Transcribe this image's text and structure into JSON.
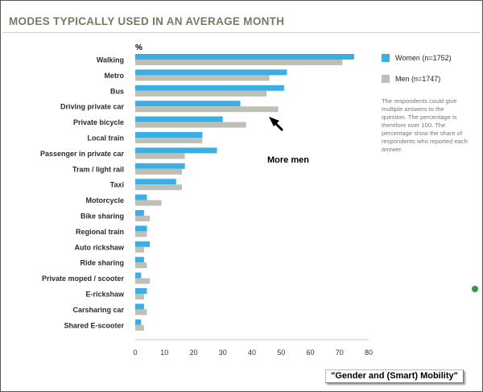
{
  "chart_data": {
    "type": "bar",
    "orientation": "horizontal",
    "title": "MODES TYPICALLY USED IN AN AVERAGE MONTH",
    "unit_label": "%",
    "categories": [
      "Walking",
      "Metro",
      "Bus",
      "Driving private car",
      "Private bicycle",
      "Local train",
      "Passenger in private car",
      "Tram / light rail",
      "Taxi",
      "Motorcycle",
      "Bike sharing",
      "Regional train",
      "Auto rickshaw",
      "Ride sharing",
      "Private moped / scooter",
      "E-rickshaw",
      "Carsharing car",
      "Shared E-scooter"
    ],
    "series": [
      {
        "name": "Women (n=1752)",
        "color": "#3baee4",
        "values": [
          75,
          52,
          51,
          36,
          30,
          23,
          28,
          17,
          14,
          4,
          3,
          4,
          5,
          3,
          2,
          4,
          3,
          2
        ]
      },
      {
        "name": "Men (n=1747)",
        "color": "#c0bfb5",
        "values": [
          71,
          46,
          45,
          49,
          38,
          23,
          17,
          16,
          16,
          9,
          5,
          4,
          3,
          4,
          5,
          3,
          4,
          3
        ]
      }
    ],
    "xlim": [
      0,
      80
    ],
    "xticks": [
      0,
      10,
      20,
      30,
      40,
      50,
      60,
      70,
      80
    ],
    "grid": false,
    "legend_position": "right",
    "note": "The respondents could give multiple answers to the question. The percentage is therefore over 100. The percentage show the share of respondents who reported each answer.",
    "annotation": {
      "text": "More men",
      "target_category": "Driving private car",
      "target_series": "Men (n=1747)"
    }
  },
  "credit": "\"Gender and (Smart) Mobility\""
}
